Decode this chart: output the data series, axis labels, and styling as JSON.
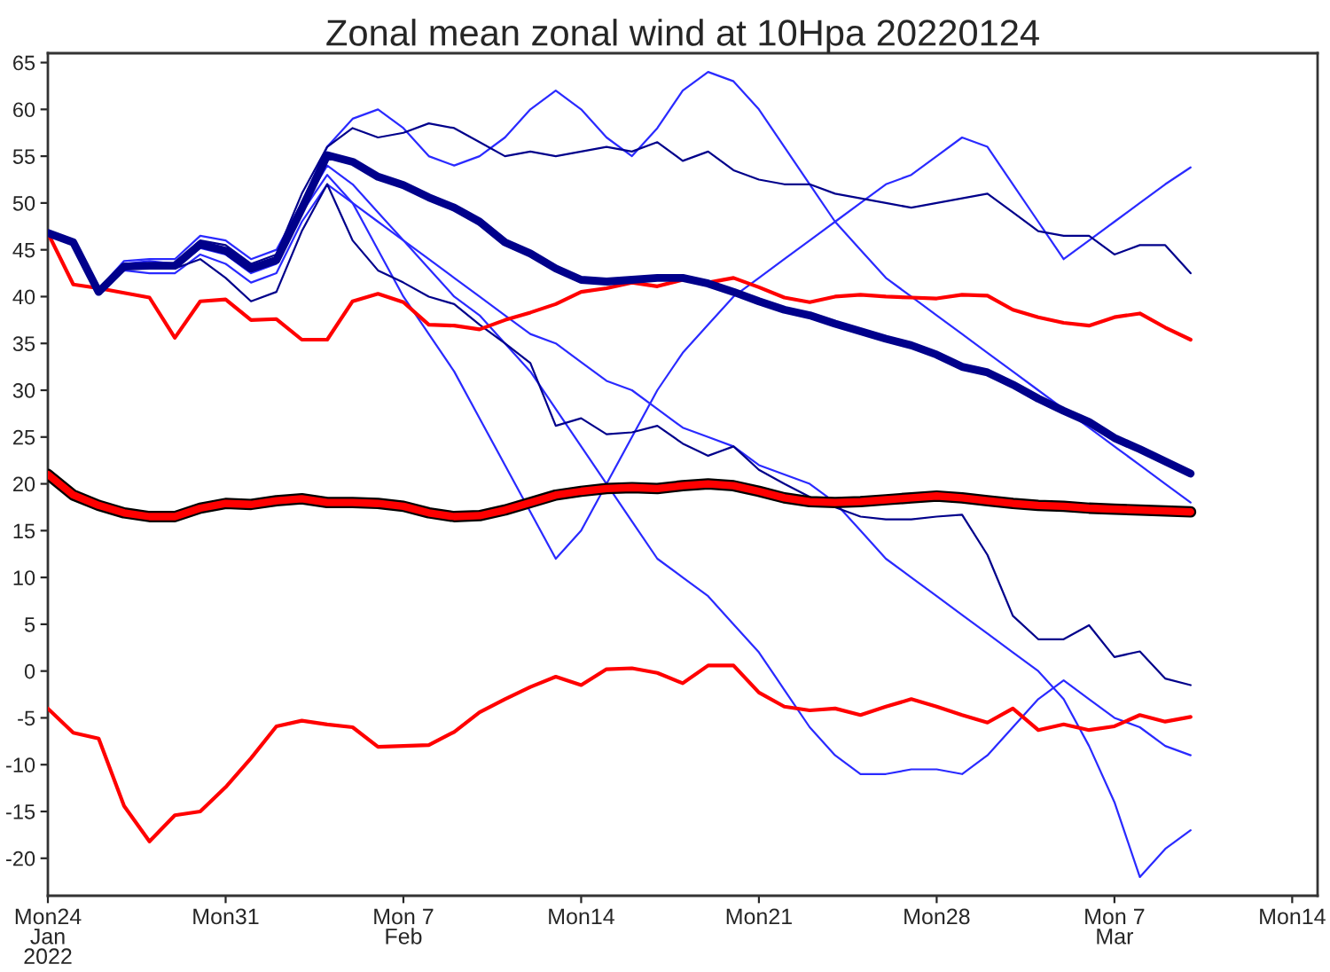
{
  "chart_data": {
    "type": "line",
    "title": "Zonal mean zonal wind at 10Hpa 20220124",
    "x": [
      "2022-01-24",
      "2022-01-25",
      "2022-01-26",
      "2022-01-27",
      "2022-01-28",
      "2022-01-29",
      "2022-01-30",
      "2022-01-31",
      "2022-02-01",
      "2022-02-02",
      "2022-02-03",
      "2022-02-04",
      "2022-02-05",
      "2022-02-06",
      "2022-02-07",
      "2022-02-08",
      "2022-02-09",
      "2022-02-10",
      "2022-02-11",
      "2022-02-12",
      "2022-02-13",
      "2022-02-14",
      "2022-02-15",
      "2022-02-16",
      "2022-02-17",
      "2022-02-18",
      "2022-02-19",
      "2022-02-20",
      "2022-02-21",
      "2022-02-22",
      "2022-02-23",
      "2022-02-24",
      "2022-02-25",
      "2022-02-26",
      "2022-02-27",
      "2022-02-28",
      "2022-03-01",
      "2022-03-02",
      "2022-03-03",
      "2022-03-04",
      "2022-03-05",
      "2022-03-06",
      "2022-03-07",
      "2022-03-08",
      "2022-03-09",
      "2022-03-10"
    ],
    "series": [
      {
        "color": "#2a2aff",
        "values": [
          46.8,
          45.8,
          40.8,
          43.8,
          44,
          44,
          46.5,
          46,
          44,
          45,
          50,
          56,
          59,
          60,
          58,
          55,
          54,
          55,
          57,
          60,
          62,
          60,
          57,
          55,
          58,
          62,
          64,
          63,
          60,
          56,
          52,
          48,
          45,
          42,
          40,
          38,
          36,
          34,
          32,
          30,
          28,
          26,
          24,
          22,
          20,
          18
        ]
      },
      {
        "color": "#2a2aff",
        "values": [
          null,
          null,
          40.3,
          42.8,
          42.5,
          42.5,
          44.5,
          43.5,
          41.5,
          42.5,
          48,
          52,
          50,
          48,
          46,
          44,
          42,
          40,
          38,
          36,
          35,
          33,
          31,
          30,
          28,
          26,
          25,
          24,
          22,
          21,
          20,
          18,
          15,
          12,
          10,
          8,
          6,
          4,
          2,
          0,
          -3,
          -8,
          -14,
          -22,
          -19,
          -17
        ]
      },
      {
        "color": "#2a2aff",
        "values": [
          null,
          null,
          40.5,
          43.5,
          43.8,
          43.5,
          45.5,
          45,
          43,
          44,
          49.5,
          54,
          52,
          49,
          46,
          43,
          40,
          38,
          35,
          32,
          28,
          24,
          20,
          16,
          12,
          10,
          8,
          5,
          2,
          -2,
          -6,
          -9,
          -11,
          -11,
          -10.5,
          -10.5,
          -11,
          -9,
          -6,
          -3,
          -1,
          -3,
          -5,
          -6,
          -8,
          -9
        ]
      },
      {
        "color": "#2a2aff",
        "values": [
          null,
          null,
          40.6,
          43,
          43.2,
          43,
          45.2,
          44.5,
          42.5,
          43.5,
          49,
          53,
          50,
          45,
          40,
          36,
          32,
          27,
          22,
          17,
          12,
          15,
          20,
          25,
          30,
          34,
          37,
          40,
          42,
          44,
          46,
          48,
          50,
          52,
          53,
          55,
          57,
          56,
          52,
          48,
          44,
          46,
          48,
          50,
          52,
          53.8
        ]
      },
      {
        "color": "#00008b",
        "values": [
          46.8,
          45.8,
          40.5,
          43.3,
          43.5,
          43.5,
          46,
          45.5,
          43.5,
          44.5,
          51,
          56,
          58,
          57,
          57.5,
          58.5,
          58,
          56.5,
          55,
          55.5,
          55,
          55.5,
          56,
          55.5,
          56.5,
          54.5,
          55.5,
          53.5,
          52.5,
          52,
          52,
          51,
          50.5,
          50,
          49.5,
          50,
          50.5,
          51,
          49,
          47,
          46.5,
          46.5,
          44.5,
          45.5,
          45.5,
          42.5
        ]
      },
      {
        "color": "#00008b",
        "values": [
          46.8,
          45.8,
          40.5,
          43,
          43,
          43,
          44,
          42,
          39.5,
          40.5,
          47,
          52,
          46,
          42.8,
          41.5,
          40,
          39.2,
          37,
          35,
          32.9,
          26.2,
          27,
          25.3,
          25.5,
          26.2,
          24.3,
          23,
          24,
          21.5,
          20,
          18.6,
          17.5,
          16.5,
          16.2,
          16.2,
          16.5,
          16.7,
          12.4,
          5.9,
          3.4,
          3.4,
          4.9,
          1.5,
          2.1,
          -0.8,
          -1.5
        ]
      },
      {
        "color": "#ff0000",
        "values": [
          46.8,
          41.3,
          40.9,
          40.4,
          39.9,
          35.6,
          39.5,
          39.7,
          37.5,
          37.6,
          35.4,
          35.4,
          39.5,
          40.3,
          39.4,
          37.0,
          36.9,
          36.5,
          37.5,
          38.3,
          39.2,
          40.5,
          40.9,
          41.5,
          41.1,
          41.8,
          41.5,
          42.0,
          41.0,
          39.9,
          39.4,
          40.0,
          40.2,
          40.0,
          39.9,
          39.8,
          40.2,
          40.1,
          38.6,
          37.8,
          37.2,
          36.9,
          37.8,
          38.2,
          36.7,
          35.4
        ]
      },
      {
        "color": "#ff0000",
        "values": [
          -4.0,
          -6.6,
          -7.2,
          -14.4,
          -18.2,
          -15.4,
          -15.0,
          -12.4,
          -9.3,
          -5.9,
          -5.3,
          -5.7,
          -6.0,
          -8.1,
          -8.0,
          -7.9,
          -6.5,
          -4.4,
          -3.0,
          -1.7,
          -0.6,
          -1.5,
          0.2,
          0.3,
          -0.2,
          -1.3,
          0.6,
          0.6,
          -2.3,
          -3.8,
          -4.2,
          -4.0,
          -4.7,
          -3.8,
          -3.0,
          -3.8,
          -4.7,
          -5.5,
          -4.0,
          -6.3,
          -5.7,
          -6.3,
          -5.9,
          -4.7,
          -5.4,
          -4.9
        ]
      },
      {
        "color": "#ff0000",
        "values": [
          21.0,
          18.8,
          17.7,
          16.9,
          16.5,
          16.5,
          17.4,
          17.9,
          17.8,
          18.2,
          18.4,
          18.0,
          18.0,
          17.9,
          17.6,
          16.9,
          16.5,
          16.6,
          17.2,
          18.0,
          18.8,
          19.2,
          19.5,
          19.6,
          19.5,
          19.8,
          20.0,
          19.8,
          19.2,
          18.5,
          18.1,
          18.0,
          18.1,
          18.3,
          18.5,
          18.7,
          18.5,
          18.2,
          17.9,
          17.7,
          17.6,
          17.4,
          17.3,
          17.2,
          17.1,
          17.0
        ]
      },
      {
        "color": "#00008b",
        "values": [
          46.8,
          45.8,
          40.5,
          43.2,
          43.3,
          43.3,
          45.6,
          44.9,
          43.0,
          43.9,
          49.4,
          55.1,
          54.4,
          52.8,
          51.9,
          50.6,
          49.5,
          48.0,
          45.8,
          44.6,
          43.0,
          41.8,
          41.6,
          41.8,
          42.0,
          42.0,
          41.4,
          40.5,
          39.5,
          38.6,
          38.0,
          37.1,
          36.3,
          35.5,
          34.8,
          33.8,
          32.5,
          31.9,
          30.6,
          29.1,
          27.8,
          26.6,
          24.9,
          23.7,
          22.4,
          21.1
        ]
      }
    ],
    "xlim": [
      "2022-01-24",
      "2022-03-15"
    ],
    "xticks": [
      {
        "value": "2022-01-24",
        "label": "Mon24\nJan\n2022"
      },
      {
        "value": "2022-01-31",
        "label": "Mon31"
      },
      {
        "value": "2022-02-07",
        "label": "Mon 7\nFeb"
      },
      {
        "value": "2022-02-14",
        "label": "Mon14"
      },
      {
        "value": "2022-02-21",
        "label": "Mon21"
      },
      {
        "value": "2022-02-28",
        "label": "Mon28"
      },
      {
        "value": "2022-03-07",
        "label": "Mon 7\nMar"
      },
      {
        "value": "2022-03-14",
        "label": "Mon14"
      }
    ],
    "ylim": [
      -24,
      66
    ],
    "yticks": [
      -20,
      -15,
      -10,
      -5,
      0,
      5,
      10,
      15,
      20,
      25,
      30,
      35,
      40,
      45,
      50,
      55,
      60,
      65
    ],
    "grid": false,
    "marker": "none",
    "line_style": "solid"
  }
}
